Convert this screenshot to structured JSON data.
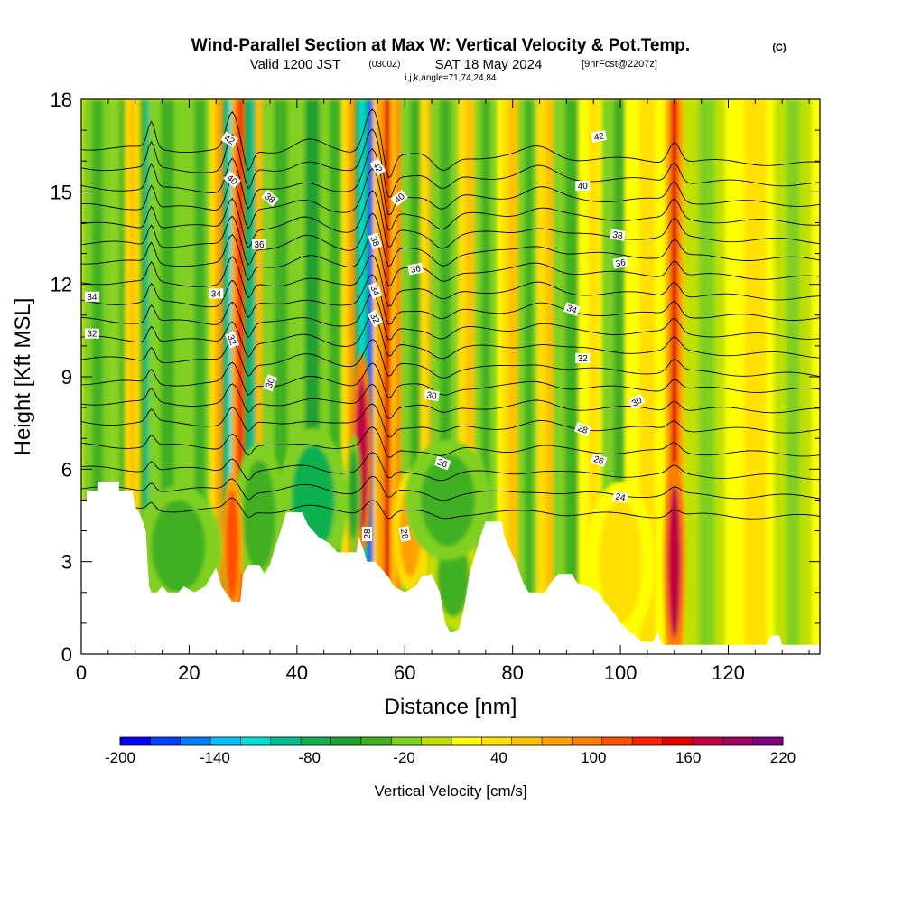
{
  "header": {
    "title": "Wind-Parallel Section at Max W: Vertical Velocity & Pot.Temp.",
    "title_mark": "(C)",
    "valid_prefix": "Valid 1200 JST",
    "valid_z": "(0300Z)",
    "valid_date": "SAT 18 May 2024",
    "forecast": "[9hrFcst@2207z]",
    "indices": "i,j,k,angle=71,74,24,84"
  },
  "chart_data": {
    "type": "heatmap",
    "xlabel": "Distance [nm]",
    "ylabel": "Height [Kft MSL]",
    "xlim": [
      0,
      137
    ],
    "ylim": [
      0,
      18
    ],
    "x_ticks": [
      "0",
      "20",
      "40",
      "60",
      "80",
      "100",
      "120"
    ],
    "x_tick_values": [
      0,
      20,
      40,
      60,
      80,
      100,
      120
    ],
    "y_ticks": [
      "0",
      "3",
      "6",
      "9",
      "12",
      "15",
      "18"
    ],
    "y_tick_values": [
      0,
      3,
      6,
      9,
      12,
      15,
      18
    ],
    "colorbar": {
      "label": "Vertical Velocity [cm/s]",
      "labels": [
        "-200",
        "-140",
        "-80",
        "-20",
        "40",
        "100",
        "160",
        "220"
      ],
      "label_values": [
        -200,
        -140,
        -80,
        -20,
        40,
        100,
        160,
        220
      ],
      "min": -200,
      "max": 220,
      "colors": [
        "#0000ff",
        "#0040ff",
        "#0080ff",
        "#00c0ff",
        "#00e0d0",
        "#00c090",
        "#10b050",
        "#20a030",
        "#40b020",
        "#80d020",
        "#c0e000",
        "#ffff00",
        "#ffe000",
        "#ffc000",
        "#ffa000",
        "#ff8000",
        "#ff5000",
        "#ff2000",
        "#e00000",
        "#c00040",
        "#a00060",
        "#800080"
      ]
    },
    "background_value": 15,
    "velocity_columns": [
      {
        "x": 3,
        "w": 2,
        "v": -30
      },
      {
        "x": 8,
        "w": 1.5,
        "v": -40
      },
      {
        "x": 9.5,
        "w": 1,
        "v": 60
      },
      {
        "x": 12.5,
        "w": 1.2,
        "v": -90
      },
      {
        "x": 14,
        "w": 0.9,
        "v": 70
      },
      {
        "x": 16,
        "w": 2.5,
        "v": -40
      },
      {
        "x": 22,
        "w": 2,
        "v": -35
      },
      {
        "x": 25.5,
        "w": 1.2,
        "v": 80
      },
      {
        "x": 27.5,
        "w": 1,
        "v": -120
      },
      {
        "x": 29.5,
        "w": 1.2,
        "v": 130
      },
      {
        "x": 31.5,
        "w": 1,
        "v": -100
      },
      {
        "x": 34,
        "w": 1.2,
        "v": 90
      },
      {
        "x": 37,
        "w": 2.5,
        "v": -40
      },
      {
        "x": 43,
        "w": 3,
        "v": -60
      },
      {
        "x": 47,
        "w": 2,
        "v": -40
      },
      {
        "x": 50,
        "w": 1.2,
        "v": 70
      },
      {
        "x": 52,
        "w": 1,
        "v": -120
      },
      {
        "x": 53.7,
        "w": 0.9,
        "v": -190
      },
      {
        "x": 55.2,
        "w": 0.8,
        "v": 60
      },
      {
        "x": 57,
        "w": 1.6,
        "v": 150
      },
      {
        "x": 59,
        "w": 1.2,
        "v": 90
      },
      {
        "x": 62,
        "w": 2,
        "v": -40
      },
      {
        "x": 65,
        "w": 1.5,
        "v": 80
      },
      {
        "x": 67.5,
        "w": 2,
        "v": -40
      },
      {
        "x": 72,
        "w": 1.5,
        "v": 60
      },
      {
        "x": 75,
        "w": 1.5,
        "v": -40
      },
      {
        "x": 80,
        "w": 1.5,
        "v": 60
      },
      {
        "x": 83,
        "w": 1.5,
        "v": -35
      },
      {
        "x": 87,
        "w": 1.8,
        "v": 55
      },
      {
        "x": 91,
        "w": 2.5,
        "v": -30
      },
      {
        "x": 95,
        "w": 2,
        "v": 40
      },
      {
        "x": 100,
        "w": 2.5,
        "v": -30
      },
      {
        "x": 105,
        "w": 3,
        "v": 35
      },
      {
        "x": 110,
        "w": 1.2,
        "v": 150
      },
      {
        "x": 116,
        "w": 3,
        "v": -25
      },
      {
        "x": 125,
        "w": 4,
        "v": 35
      },
      {
        "x": 132,
        "w": 2.5,
        "v": -25
      }
    ],
    "velocity_cells": [
      {
        "x": 52,
        "y": 6.5,
        "rx": 1.2,
        "ry": 2.5,
        "v": 170
      },
      {
        "x": 50.5,
        "y": 5.2,
        "rx": 0.8,
        "ry": 1.5,
        "v": -60
      },
      {
        "x": 110,
        "y": 3,
        "rx": 1.2,
        "ry": 2.5,
        "v": 180
      },
      {
        "x": 43,
        "y": 5,
        "rx": 4,
        "ry": 1.8,
        "v": -70
      },
      {
        "x": 33,
        "y": 4.5,
        "rx": 3,
        "ry": 1.8,
        "v": -40
      },
      {
        "x": 18,
        "y": 3.5,
        "rx": 5,
        "ry": 1.5,
        "v": -35
      },
      {
        "x": 28,
        "y": 3.5,
        "rx": 1.2,
        "ry": 1.8,
        "v": 120
      },
      {
        "x": 61,
        "y": 4,
        "rx": 2,
        "ry": 1.5,
        "v": 70
      },
      {
        "x": 69,
        "y": 2.5,
        "rx": 3,
        "ry": 1.3,
        "v": -30
      },
      {
        "x": 68,
        "y": 5,
        "rx": 5,
        "ry": 1.5,
        "v": -35
      },
      {
        "x": 100,
        "y": 3,
        "rx": 4,
        "ry": 2,
        "v": 40
      }
    ],
    "theta_levels": [
      24,
      26,
      28,
      30,
      32,
      34,
      36,
      38,
      40,
      42
    ],
    "theta_labels": [
      {
        "text": "42",
        "x": 55,
        "y": 15.8,
        "rot": 60
      },
      {
        "text": "42",
        "x": 27.5,
        "y": 16.7,
        "rot": 30
      },
      {
        "text": "42",
        "x": 96,
        "y": 16.8,
        "rot": -10
      },
      {
        "text": "40",
        "x": 28,
        "y": 15.4,
        "rot": 40
      },
      {
        "text": "40",
        "x": 59,
        "y": 14.8,
        "rot": -40
      },
      {
        "text": "40",
        "x": 93,
        "y": 15.2,
        "rot": 0
      },
      {
        "text": "38",
        "x": 35,
        "y": 14.8,
        "rot": 40
      },
      {
        "text": "38",
        "x": 54.5,
        "y": 13.4,
        "rot": 70
      },
      {
        "text": "38",
        "x": 99.5,
        "y": 13.6,
        "rot": 10
      },
      {
        "text": "36",
        "x": 33,
        "y": 13.3,
        "rot": 0
      },
      {
        "text": "36",
        "x": 62,
        "y": 12.5,
        "rot": -10
      },
      {
        "text": "36",
        "x": 100,
        "y": 12.7,
        "rot": -10
      },
      {
        "text": "34",
        "x": 2,
        "y": 11.6,
        "rot": 0
      },
      {
        "text": "34",
        "x": 25,
        "y": 11.7,
        "rot": 0
      },
      {
        "text": "34",
        "x": 54.5,
        "y": 11.8,
        "rot": 70
      },
      {
        "text": "34",
        "x": 91,
        "y": 11.2,
        "rot": 20
      },
      {
        "text": "32",
        "x": 2,
        "y": 10.4,
        "rot": 0
      },
      {
        "text": "32",
        "x": 28,
        "y": 10.2,
        "rot": 70
      },
      {
        "text": "32",
        "x": 54.5,
        "y": 10.9,
        "rot": 60
      },
      {
        "text": "32",
        "x": 93,
        "y": 9.6,
        "rot": 0
      },
      {
        "text": "30",
        "x": 35,
        "y": 8.8,
        "rot": -70
      },
      {
        "text": "30",
        "x": 65,
        "y": 8.4,
        "rot": 10
      },
      {
        "text": "30",
        "x": 103,
        "y": 8.2,
        "rot": -30
      },
      {
        "text": "28",
        "x": 93,
        "y": 7.3,
        "rot": 20
      },
      {
        "text": "28",
        "x": 53,
        "y": 3.9,
        "rot": -90
      },
      {
        "text": "28",
        "x": 60,
        "y": 3.9,
        "rot": 80
      },
      {
        "text": "26",
        "x": 67,
        "y": 6.2,
        "rot": 20
      },
      {
        "text": "26",
        "x": 96,
        "y": 6.3,
        "rot": 20
      },
      {
        "text": "24",
        "x": 100,
        "y": 5.1,
        "rot": 10
      }
    ],
    "terrain": [
      [
        0,
        5.0
      ],
      [
        1,
        5.0
      ],
      [
        1,
        5.3
      ],
      [
        3,
        5.3
      ],
      [
        3,
        5.6
      ],
      [
        7,
        5.6
      ],
      [
        7,
        5.3
      ],
      [
        9.5,
        5.3
      ],
      [
        10,
        4.8
      ],
      [
        11,
        4.5
      ],
      [
        12,
        4.0
      ],
      [
        12.3,
        3.0
      ],
      [
        12.6,
        2.2
      ],
      [
        13,
        2.0
      ],
      [
        14,
        2.0
      ],
      [
        15,
        2.2
      ],
      [
        16,
        2.0
      ],
      [
        18,
        2.0
      ],
      [
        19,
        2.2
      ],
      [
        21,
        2.0
      ],
      [
        23,
        2.2
      ],
      [
        24,
        2.5
      ],
      [
        25,
        2.8
      ],
      [
        26,
        2.2
      ],
      [
        28,
        1.7
      ],
      [
        29.5,
        1.7
      ],
      [
        30,
        2.6
      ],
      [
        31,
        2.9
      ],
      [
        33,
        2.9
      ],
      [
        34,
        2.6
      ],
      [
        35,
        2.9
      ],
      [
        36,
        3.5
      ],
      [
        37,
        4.0
      ],
      [
        38,
        4.6
      ],
      [
        41,
        4.6
      ],
      [
        42,
        4.2
      ],
      [
        44,
        3.8
      ],
      [
        46,
        3.6
      ],
      [
        47.5,
        3.3
      ],
      [
        51,
        3.3
      ],
      [
        51.5,
        3.8
      ],
      [
        52.5,
        3.3
      ],
      [
        53,
        3.0
      ],
      [
        54.5,
        3.0
      ],
      [
        55.5,
        2.8
      ],
      [
        57,
        2.5
      ],
      [
        58,
        2.2
      ],
      [
        60,
        2.0
      ],
      [
        62,
        2.2
      ],
      [
        63,
        2.5
      ],
      [
        65,
        2.6
      ],
      [
        66.5,
        2.0
      ],
      [
        67.5,
        1.0
      ],
      [
        68.5,
        0.7
      ],
      [
        70,
        0.8
      ],
      [
        71,
        1.5
      ],
      [
        72,
        2.6
      ],
      [
        73,
        3.2
      ],
      [
        74,
        3.8
      ],
      [
        75,
        4.3
      ],
      [
        78,
        4.3
      ],
      [
        78.5,
        3.8
      ],
      [
        80,
        3.2
      ],
      [
        81,
        2.8
      ],
      [
        82,
        2.3
      ],
      [
        83,
        2.0
      ],
      [
        86,
        2.0
      ],
      [
        87,
        2.3
      ],
      [
        88.5,
        2.6
      ],
      [
        90,
        2.6
      ],
      [
        91,
        2.6
      ],
      [
        92,
        2.3
      ],
      [
        94,
        2.2
      ],
      [
        96,
        2.0
      ],
      [
        97,
        1.7
      ],
      [
        98,
        1.5
      ],
      [
        99,
        1.3
      ],
      [
        100,
        1.0
      ],
      [
        102,
        0.7
      ],
      [
        104,
        0.4
      ],
      [
        106,
        0.4
      ],
      [
        107,
        0.7
      ],
      [
        107.5,
        0.4
      ],
      [
        108,
        0.3
      ],
      [
        115,
        0.3
      ],
      [
        118,
        0.3
      ],
      [
        120,
        0.3
      ],
      [
        127,
        0.3
      ],
      [
        128,
        0.6
      ],
      [
        129.5,
        0.6
      ],
      [
        130,
        0.3
      ],
      [
        137,
        0.3
      ]
    ]
  }
}
